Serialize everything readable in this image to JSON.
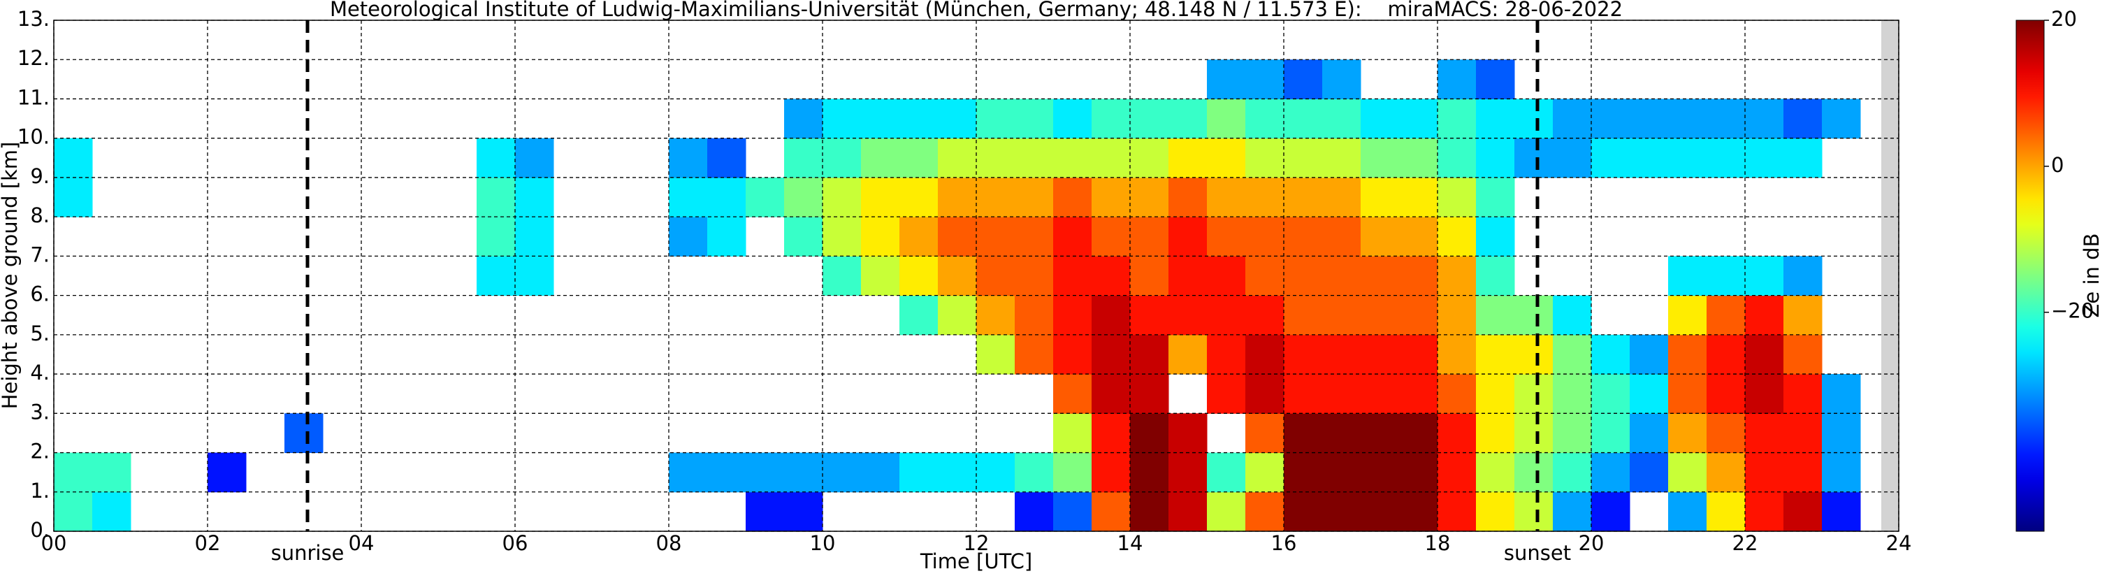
{
  "chart_data": {
    "type": "heatmap",
    "title": "Meteorological Institute of Ludwig-Maximilians-Universität (München, Germany; 48.148 N / 11.573 E):    miraMACS: 28-06-2022",
    "xlabel": "Time [UTC]",
    "ylabel": "Height above ground [km]",
    "xlim": [
      0,
      24
    ],
    "ylim": [
      0,
      13
    ],
    "xticks": [
      {
        "value": 0,
        "label": "00"
      },
      {
        "value": 2,
        "label": "02"
      },
      {
        "value": 4,
        "label": "04"
      },
      {
        "value": 6,
        "label": "06"
      },
      {
        "value": 8,
        "label": "08"
      },
      {
        "value": 10,
        "label": "10"
      },
      {
        "value": 12,
        "label": "12"
      },
      {
        "value": 14,
        "label": "14"
      },
      {
        "value": 16,
        "label": "16"
      },
      {
        "value": 18,
        "label": "18"
      },
      {
        "value": 20,
        "label": "20"
      },
      {
        "value": 22,
        "label": "22"
      },
      {
        "value": 24,
        "label": "24"
      }
    ],
    "yticks": [
      {
        "value": 0,
        "label": "0."
      },
      {
        "value": 1,
        "label": "1."
      },
      {
        "value": 2,
        "label": "2."
      },
      {
        "value": 3,
        "label": "3."
      },
      {
        "value": 4,
        "label": "4."
      },
      {
        "value": 5,
        "label": "5."
      },
      {
        "value": 6,
        "label": "6."
      },
      {
        "value": 7,
        "label": "7."
      },
      {
        "value": 8,
        "label": "8."
      },
      {
        "value": 9,
        "label": "9."
      },
      {
        "value": 10,
        "label": "10."
      },
      {
        "value": 11,
        "label": "11."
      },
      {
        "value": 12,
        "label": "12."
      },
      {
        "value": 13,
        "label": "13."
      }
    ],
    "grid": true,
    "annotations": [
      {
        "x": 3.3,
        "label": "sunrise"
      },
      {
        "x": 19.3,
        "label": "sunset"
      }
    ],
    "colorbar": {
      "label": "Ze in dB",
      "lim": [
        -50,
        20
      ],
      "ticks": [
        {
          "value": -20,
          "label": "−20"
        },
        0,
        20
      ],
      "colormap": "jet"
    },
    "x": [
      0.25,
      0.75,
      1.25,
      1.75,
      2.25,
      2.75,
      3.25,
      3.75,
      4.25,
      4.75,
      5.25,
      5.75,
      6.25,
      6.75,
      7.25,
      7.75,
      8.25,
      8.75,
      9.25,
      9.75,
      10.25,
      10.75,
      11.25,
      11.75,
      12.25,
      12.75,
      13.25,
      13.75,
      14.25,
      14.75,
      15.25,
      15.75,
      16.25,
      16.75,
      17.25,
      17.75,
      18.25,
      18.75,
      19.25,
      19.75,
      20.25,
      20.75,
      21.25,
      21.75,
      22.25,
      22.75,
      23.25,
      23.75
    ],
    "y": [
      0.5,
      1.5,
      2.5,
      3.5,
      4.5,
      5.5,
      6.5,
      7.5,
      8.5,
      9.5,
      10.5,
      11.5,
      12.5
    ],
    "z": [
      [
        -20,
        -25,
        null,
        null,
        null,
        null,
        null,
        null,
        null,
        null,
        null,
        null,
        null,
        null,
        null,
        null,
        null,
        null,
        -40,
        -40,
        null,
        null,
        null,
        null,
        null,
        -40,
        -35,
        5,
        20,
        15,
        -10,
        5,
        20,
        20,
        20,
        20,
        10,
        -5,
        -10,
        -30,
        -40,
        null,
        -30,
        -5,
        10,
        15,
        -40,
        null
      ],
      [
        -20,
        -20,
        null,
        null,
        -40,
        null,
        null,
        null,
        null,
        null,
        null,
        null,
        null,
        null,
        null,
        null,
        -30,
        -30,
        -30,
        -30,
        -30,
        -30,
        -25,
        -25,
        -25,
        -20,
        -15,
        10,
        20,
        15,
        -20,
        -10,
        20,
        20,
        20,
        20,
        10,
        -10,
        -15,
        -20,
        -30,
        -35,
        -10,
        0,
        10,
        10,
        -30,
        null
      ],
      [
        null,
        null,
        null,
        null,
        null,
        null,
        -35,
        null,
        null,
        null,
        null,
        null,
        null,
        null,
        null,
        null,
        null,
        null,
        null,
        null,
        null,
        null,
        null,
        null,
        null,
        null,
        -10,
        10,
        20,
        15,
        null,
        5,
        20,
        20,
        20,
        20,
        10,
        -5,
        -10,
        -15,
        -20,
        -30,
        0,
        5,
        10,
        10,
        -30,
        null
      ],
      [
        null,
        null,
        null,
        null,
        null,
        null,
        null,
        null,
        null,
        null,
        null,
        null,
        null,
        null,
        null,
        null,
        null,
        null,
        null,
        null,
        null,
        null,
        null,
        null,
        null,
        null,
        5,
        15,
        15,
        null,
        10,
        15,
        10,
        10,
        10,
        10,
        5,
        -5,
        -10,
        -15,
        -20,
        -25,
        5,
        10,
        15,
        10,
        -30,
        null
      ],
      [
        null,
        null,
        null,
        null,
        null,
        null,
        null,
        null,
        null,
        null,
        null,
        null,
        null,
        null,
        null,
        null,
        null,
        null,
        null,
        null,
        null,
        null,
        null,
        null,
        -10,
        5,
        10,
        15,
        15,
        0,
        10,
        15,
        10,
        10,
        10,
        10,
        0,
        -5,
        -5,
        -15,
        -25,
        -30,
        5,
        10,
        15,
        5,
        null,
        null
      ],
      [
        null,
        null,
        null,
        null,
        null,
        null,
        null,
        null,
        null,
        null,
        null,
        null,
        null,
        null,
        null,
        null,
        null,
        null,
        null,
        null,
        null,
        null,
        -20,
        -10,
        0,
        5,
        10,
        15,
        10,
        10,
        10,
        10,
        5,
        5,
        5,
        5,
        0,
        -15,
        -15,
        -25,
        null,
        null,
        -5,
        5,
        10,
        0,
        null,
        null
      ],
      [
        null,
        null,
        null,
        null,
        null,
        null,
        null,
        null,
        null,
        null,
        null,
        -25,
        -25,
        null,
        null,
        null,
        null,
        null,
        null,
        null,
        -20,
        -10,
        -5,
        0,
        5,
        5,
        10,
        10,
        5,
        10,
        10,
        5,
        5,
        5,
        5,
        5,
        0,
        -20,
        null,
        null,
        null,
        null,
        -25,
        -25,
        -25,
        -30,
        null,
        null
      ],
      [
        null,
        null,
        null,
        null,
        null,
        null,
        null,
        null,
        null,
        null,
        null,
        -20,
        -25,
        null,
        null,
        null,
        -30,
        -25,
        null,
        -20,
        -10,
        -5,
        0,
        5,
        5,
        5,
        10,
        5,
        5,
        10,
        5,
        5,
        5,
        5,
        0,
        0,
        -5,
        -25,
        null,
        null,
        null,
        null,
        null,
        null,
        null,
        null,
        null,
        null
      ],
      [
        -25,
        null,
        null,
        null,
        null,
        null,
        null,
        null,
        null,
        null,
        null,
        -20,
        -25,
        null,
        null,
        null,
        -25,
        -25,
        -20,
        -15,
        -10,
        -5,
        -5,
        0,
        0,
        0,
        5,
        0,
        0,
        5,
        0,
        0,
        0,
        0,
        -5,
        -5,
        -10,
        -20,
        null,
        null,
        null,
        null,
        null,
        null,
        null,
        null,
        null,
        null
      ],
      [
        -25,
        null,
        null,
        null,
        null,
        null,
        null,
        null,
        null,
        null,
        null,
        -25,
        -30,
        null,
        null,
        null,
        -30,
        -35,
        null,
        -20,
        -20,
        -15,
        -15,
        -10,
        -10,
        -10,
        -10,
        -10,
        -10,
        -5,
        -5,
        -10,
        -10,
        -10,
        -15,
        -15,
        -20,
        -25,
        -30,
        -30,
        -25,
        -25,
        -25,
        -25,
        -25,
        -25,
        null,
        null
      ],
      [
        null,
        null,
        null,
        null,
        null,
        null,
        null,
        null,
        null,
        null,
        null,
        null,
        null,
        null,
        null,
        null,
        null,
        null,
        null,
        -30,
        -25,
        -25,
        -25,
        -25,
        -20,
        -20,
        -25,
        -20,
        -20,
        -20,
        -15,
        -20,
        -20,
        -20,
        -25,
        -25,
        -20,
        -25,
        -25,
        -30,
        -30,
        -30,
        -30,
        -30,
        -30,
        -35,
        -30,
        null
      ],
      [
        null,
        null,
        null,
        null,
        null,
        null,
        null,
        null,
        null,
        null,
        null,
        null,
        null,
        null,
        null,
        null,
        null,
        null,
        null,
        null,
        null,
        null,
        null,
        null,
        null,
        null,
        null,
        null,
        null,
        null,
        -30,
        -30,
        -35,
        -30,
        null,
        null,
        -30,
        -35,
        null,
        null,
        null,
        null,
        null,
        null,
        null,
        null,
        null,
        null
      ],
      [
        null,
        null,
        null,
        null,
        null,
        null,
        null,
        null,
        null,
        null,
        null,
        null,
        null,
        null,
        null,
        null,
        null,
        null,
        null,
        null,
        null,
        null,
        null,
        null,
        null,
        null,
        null,
        null,
        null,
        null,
        null,
        null,
        null,
        null,
        null,
        null,
        null,
        null,
        null,
        null,
        null,
        null,
        null,
        null,
        null,
        null,
        null,
        null
      ]
    ]
  }
}
